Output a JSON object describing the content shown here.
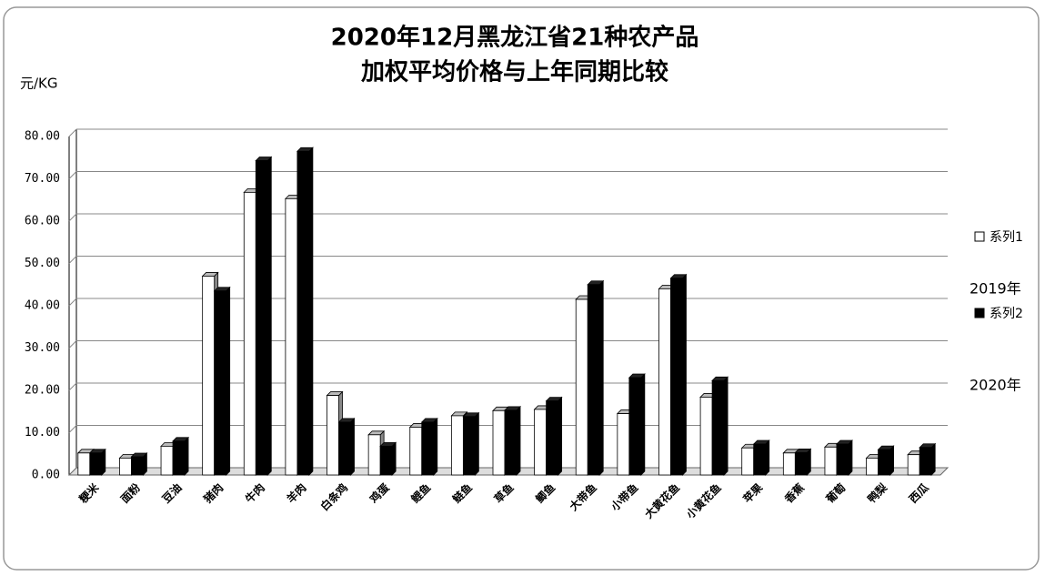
{
  "chart_data": {
    "type": "bar3d",
    "title": [
      "2020年12月黑龙江省21种农产品",
      "加权平均价格与上年同期比较"
    ],
    "y_label": "元/KG",
    "categories": [
      "粳米",
      "面粉",
      "豆油",
      "猪肉",
      "牛肉",
      "羊肉",
      "白条鸡",
      "鸡蛋",
      "鲤鱼",
      "鲢鱼",
      "草鱼",
      "鲫鱼",
      "大带鱼",
      "小带鱼",
      "大黄花鱼",
      "小黄花鱼",
      "苹果",
      "香蕉",
      "葡萄",
      "鸭梨",
      "西瓜"
    ],
    "series": [
      {
        "name": "系列1",
        "color": "#ffffff",
        "values": [
          5.2,
          4.0,
          6.8,
          47.0,
          66.8,
          65.3,
          18.8,
          9.5,
          11.3,
          14.0,
          15.2,
          15.5,
          41.5,
          14.5,
          44.0,
          18.4,
          6.4,
          5.2,
          6.6,
          4.0,
          4.8
        ]
      },
      {
        "name": "系列2",
        "color": "#000000",
        "values": [
          5.2,
          4.3,
          8.0,
          43.5,
          74.3,
          76.5,
          12.5,
          6.8,
          12.5,
          13.8,
          15.3,
          17.5,
          45.0,
          23.0,
          46.5,
          22.3,
          7.3,
          5.3,
          7.3,
          6.0,
          6.5
        ]
      }
    ],
    "annotations": [
      "2019年",
      "2020年"
    ],
    "ylim": [
      0,
      80
    ],
    "yticks": [
      {
        "value": 0,
        "label": "0.00"
      },
      {
        "value": 10,
        "label": "10.00"
      },
      {
        "value": 20,
        "label": "20.00"
      },
      {
        "value": 30,
        "label": "30.00"
      },
      {
        "value": 40,
        "label": "40.00"
      },
      {
        "value": 50,
        "label": "50.00"
      },
      {
        "value": 60,
        "label": "60.00"
      },
      {
        "value": 70,
        "label": "70.00"
      },
      {
        "value": 80,
        "label": "80.00"
      }
    ],
    "grid": true
  }
}
